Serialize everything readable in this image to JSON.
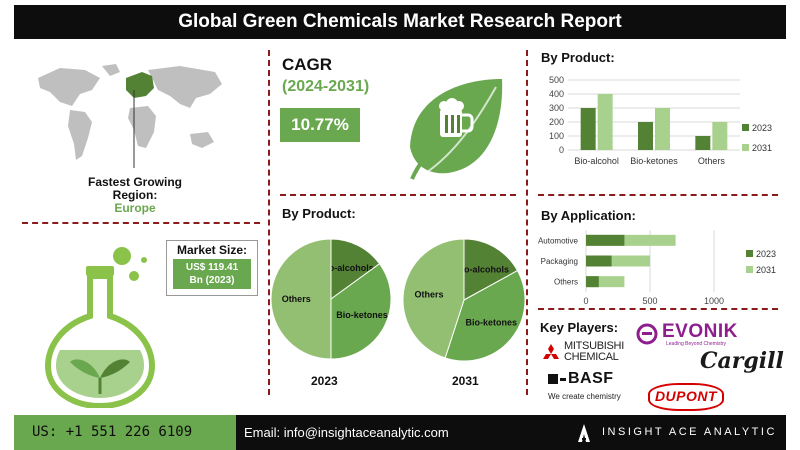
{
  "title": "Global Green Chemicals Market Research Report",
  "map": {
    "label_line1": "Fastest Growing",
    "label_line2": "Region:",
    "region": "Europe"
  },
  "cagr": {
    "label": "CAGR",
    "period": "(2024-2031)",
    "value": "10.77%"
  },
  "market_size": {
    "label": "Market Size:",
    "value_line1": "US$ 119.41",
    "value_line2": "Bn (2023)"
  },
  "pie_section": {
    "title": "By Product:",
    "year_a": "2023",
    "year_b": "2031"
  },
  "key_players": {
    "title": "Key Players:",
    "logos": [
      "MITSUBISHI CHEMICAL",
      "EVONIK",
      "Cargill",
      "BASF",
      "DUPONT"
    ],
    "evonik_tagline": "Leading Beyond Chemistry",
    "basf_tagline": "We create chemistry"
  },
  "footer": {
    "phone": "US: +1 551 226 6109",
    "email": "Email: info@insightaceanalytic.com",
    "brand": "INSIGHT ACE ANALYTIC"
  },
  "colors": {
    "dark_green": "#548235",
    "mid_green": "#6aa84f",
    "light_green": "#a9d18e",
    "accent_red": "#8b1a1a"
  },
  "chart_data": [
    {
      "type": "bar",
      "title": "By Product:",
      "categories": [
        "Bio-alcohol",
        "Bio-ketones",
        "Others"
      ],
      "series": [
        {
          "name": "2023",
          "values": [
            300,
            200,
            100
          ]
        },
        {
          "name": "2031",
          "values": [
            400,
            300,
            200
          ]
        }
      ],
      "ylim": [
        0,
        500
      ],
      "yticks": [
        0,
        100,
        200,
        300,
        400,
        500
      ],
      "grid": true,
      "legend": "right"
    },
    {
      "type": "pie",
      "title": "2023",
      "labels": [
        "Bio-alcohols",
        "Bio-ketones",
        "Others"
      ],
      "values": [
        15,
        35,
        50
      ]
    },
    {
      "type": "pie",
      "title": "2031",
      "labels": [
        "Bio-alcohols",
        "Bio-ketones",
        "Others"
      ],
      "values": [
        17,
        38,
        45
      ]
    },
    {
      "type": "bar",
      "orientation": "horizontal",
      "title": "By Application:",
      "categories": [
        "Automotive",
        "Packaging",
        "Others"
      ],
      "series": [
        {
          "name": "2023",
          "values": [
            300,
            200,
            100
          ]
        },
        {
          "name": "2031",
          "values": [
            700,
            500,
            300
          ]
        }
      ],
      "xlim": [
        0,
        1000
      ],
      "xticks": [
        0,
        500,
        1000
      ],
      "grid": true,
      "legend": "right"
    }
  ]
}
